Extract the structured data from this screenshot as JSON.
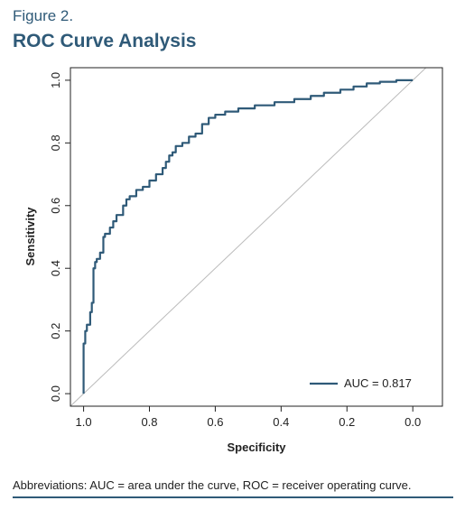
{
  "figure": {
    "label": "Figure 2.",
    "title": "ROC Curve Analysis",
    "footnote": "Abbreviations: AUC = area under the curve, ROC = receiver operating curve."
  },
  "chart_data": {
    "type": "line",
    "title": "ROC Curve Analysis",
    "xlabel": "Specificity",
    "ylabel": "Sensitivity",
    "xlim": [
      1.04,
      -0.09
    ],
    "ylim": [
      -0.04,
      1.04
    ],
    "x_reversed": true,
    "x_ticks": [
      1.0,
      0.8,
      0.6,
      0.4,
      0.2,
      0.0
    ],
    "x_tick_labels": [
      "1.0",
      "0.8",
      "0.6",
      "0.4",
      "0.2",
      "0.0"
    ],
    "y_ticks": [
      0.0,
      0.2,
      0.4,
      0.6,
      0.8,
      1.0
    ],
    "y_tick_labels": [
      "0.0",
      "0.2",
      "0.4",
      "0.6",
      "0.8",
      "1.0"
    ],
    "grid": false,
    "legend_position": "bottom-right",
    "colors": {
      "curve": "#2f5a78",
      "reference": "#bbbbbb"
    },
    "series": [
      {
        "name": "AUC = 0.817",
        "values": [
          [
            1.0,
            0.0
          ],
          [
            1.0,
            0.09
          ],
          [
            0.995,
            0.16
          ],
          [
            0.99,
            0.2
          ],
          [
            0.98,
            0.22
          ],
          [
            0.975,
            0.26
          ],
          [
            0.97,
            0.29
          ],
          [
            0.965,
            0.4
          ],
          [
            0.96,
            0.42
          ],
          [
            0.95,
            0.43
          ],
          [
            0.94,
            0.45
          ],
          [
            0.935,
            0.5
          ],
          [
            0.92,
            0.51
          ],
          [
            0.91,
            0.53
          ],
          [
            0.9,
            0.55
          ],
          [
            0.88,
            0.57
          ],
          [
            0.87,
            0.6
          ],
          [
            0.86,
            0.62
          ],
          [
            0.84,
            0.63
          ],
          [
            0.82,
            0.65
          ],
          [
            0.8,
            0.66
          ],
          [
            0.78,
            0.68
          ],
          [
            0.76,
            0.7
          ],
          [
            0.75,
            0.72
          ],
          [
            0.74,
            0.74
          ],
          [
            0.73,
            0.76
          ],
          [
            0.72,
            0.77
          ],
          [
            0.7,
            0.79
          ],
          [
            0.68,
            0.8
          ],
          [
            0.66,
            0.82
          ],
          [
            0.64,
            0.83
          ],
          [
            0.62,
            0.86
          ],
          [
            0.6,
            0.88
          ],
          [
            0.57,
            0.89
          ],
          [
            0.53,
            0.9
          ],
          [
            0.48,
            0.91
          ],
          [
            0.42,
            0.92
          ],
          [
            0.36,
            0.93
          ],
          [
            0.31,
            0.94
          ],
          [
            0.27,
            0.95
          ],
          [
            0.22,
            0.96
          ],
          [
            0.18,
            0.97
          ],
          [
            0.14,
            0.98
          ],
          [
            0.1,
            0.99
          ],
          [
            0.05,
            0.995
          ],
          [
            0.0,
            1.0
          ]
        ]
      },
      {
        "name": "",
        "values": [
          [
            1.04,
            -0.04
          ],
          [
            -0.04,
            1.04
          ]
        ]
      }
    ]
  }
}
